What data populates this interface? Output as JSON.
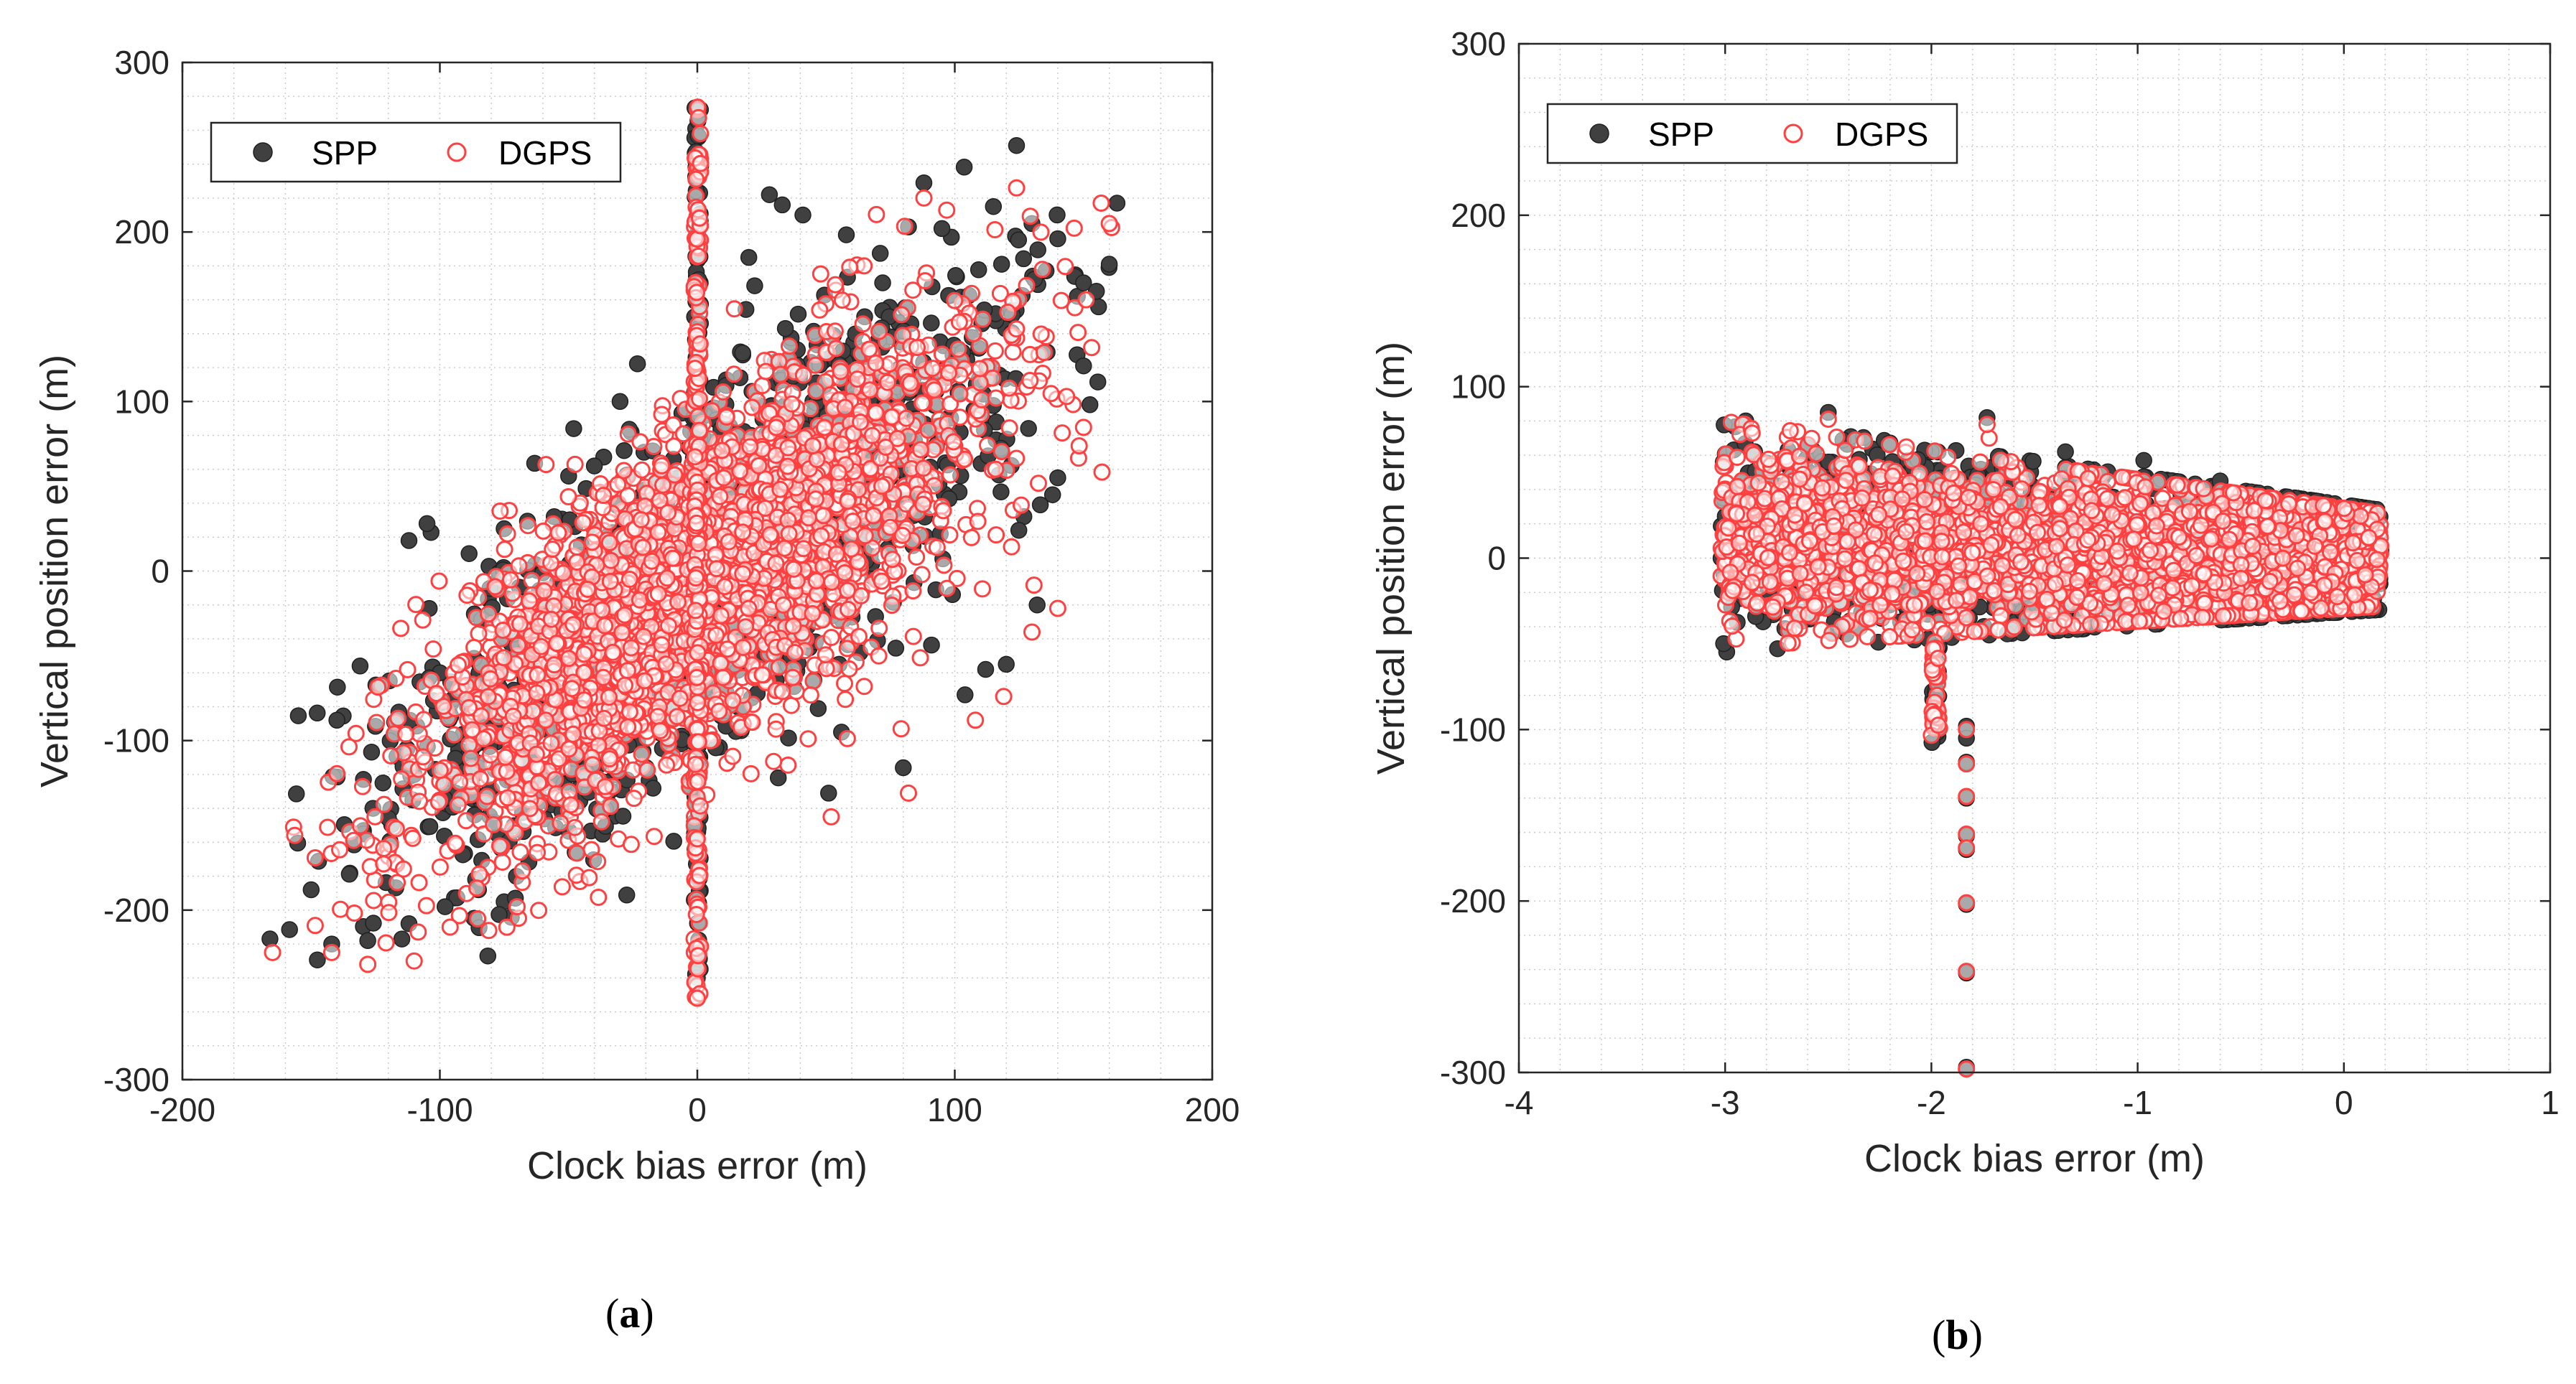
{
  "chart_data": [
    {
      "type": "scatter",
      "panel_label": "a",
      "xlabel": "Clock bias error (m)",
      "ylabel": "Vertical position error (m)",
      "xlim": [
        -200,
        200
      ],
      "ylim": [
        -300,
        300
      ],
      "xticks": [
        -200,
        -100,
        0,
        100,
        200
      ],
      "yticks": [
        -300,
        -200,
        -100,
        0,
        100,
        200,
        300
      ],
      "grid": "dotted minor",
      "legend_position": "top-left",
      "series": [
        {
          "name": "SPP",
          "color": "#404040",
          "marker": "filled-circle",
          "distribution": {
            "model": "correlated",
            "seed": 11,
            "n": 1700,
            "x_mean": 0,
            "x_sd": 58,
            "slope": 1.05,
            "intercept": -5,
            "resid_sd": 48,
            "x_min": -168,
            "x_max": 165
          },
          "spike": {
            "x": 0,
            "y_min": -240,
            "y_max": 287,
            "n": 130
          },
          "extra_points": [
            [
              -166,
              -217
            ],
            [
              -150,
              -188
            ],
            [
              -142,
              -220
            ],
            [
              -128,
              -218
            ],
            [
              -112,
              -208
            ],
            [
              -98,
              -198
            ],
            [
              -85,
              -188
            ],
            [
              -126,
              -140
            ],
            [
              -110,
              -120
            ],
            [
              -140,
              -88
            ],
            [
              -131,
              -56
            ],
            [
              -105,
              28
            ],
            [
              -112,
              18
            ],
            [
              -60,
              -35
            ],
            [
              -50,
              56
            ],
            [
              -48,
              84
            ],
            [
              -30,
              100
            ],
            [
              -40,
              62
            ],
            [
              20,
              185
            ],
            [
              28,
              222
            ],
            [
              33,
              216
            ],
            [
              41,
              210
            ],
            [
              51,
              -131
            ],
            [
              56,
              -95
            ],
            [
              80,
              -116
            ],
            [
              65,
              150
            ],
            [
              72,
              170
            ],
            [
              82,
              203
            ],
            [
              88,
              229
            ],
            [
              95,
              202
            ],
            [
              115,
              215
            ],
            [
              124,
              251
            ],
            [
              130,
              205
            ],
            [
              140,
              196
            ],
            [
              150,
              170
            ],
            [
              155,
              165
            ],
            [
              160,
              181
            ],
            [
              163,
              217
            ],
            [
              150,
              121
            ],
            [
              140,
              55
            ],
            [
              138,
              45
            ],
            [
              132,
              -20
            ],
            [
              120,
              -55
            ],
            [
              112,
              -58
            ],
            [
              104,
              -73
            ],
            [
              0,
              -240
            ]
          ]
        },
        {
          "name": "DGPS",
          "color": "#ff4040",
          "marker": "open-circle",
          "distribution": {
            "model": "correlated",
            "seed": 23,
            "n": 2900,
            "x_mean": 0,
            "x_sd": 55,
            "slope": 1.0,
            "intercept": -10,
            "resid_sd": 46,
            "x_min": -166,
            "x_max": 163
          },
          "spike": {
            "x": 0,
            "y_min": -252,
            "y_max": 278,
            "n": 190
          },
          "extra_points": [
            [
              -165,
              -225
            ],
            [
              -142,
              -225
            ],
            [
              -128,
              -232
            ],
            [
              -110,
              -230
            ],
            [
              -96,
              -210
            ],
            [
              -81,
              -212
            ],
            [
              -70,
              -198
            ],
            [
              52,
              -145
            ],
            [
              82,
              -131
            ],
            [
              108,
              -88
            ],
            [
              119,
              -74
            ],
            [
              130,
              -36
            ],
            [
              140,
              -22
            ],
            [
              124,
              226
            ],
            [
              88,
              220
            ],
            [
              160,
              205
            ],
            [
              151,
              160
            ],
            [
              0,
              -252
            ]
          ]
        }
      ]
    },
    {
      "type": "scatter",
      "panel_label": "b",
      "xlabel": "Clock bias error (m)",
      "ylabel": "Vertical position error (m)",
      "xlim": [
        -4,
        1
      ],
      "ylim": [
        -300,
        300
      ],
      "xticks": [
        -4,
        -3,
        -2,
        -1,
        0,
        1
      ],
      "yticks": [
        -300,
        -200,
        -100,
        0,
        100,
        200,
        300
      ],
      "grid": "dotted minor",
      "legend_position": "top-left",
      "series": [
        {
          "name": "SPP",
          "color": "#404040",
          "marker": "filled-circle",
          "distribution": {
            "model": "band",
            "seed": 31,
            "n": 1500,
            "x_min": -3.02,
            "x_max": 0.18,
            "top_left": 82,
            "top_right": 28,
            "bottom_left": -55,
            "bottom_right": -30,
            "y_mean_left": 15,
            "y_mean_right": 0,
            "y_sd": 26
          },
          "spike": {
            "x": -1.98,
            "y_min": -108,
            "y_max": -50,
            "n": 30
          },
          "extra_points": [
            [
              -1.83,
              -119
            ],
            [
              -1.83,
              -140
            ],
            [
              -1.83,
              -162
            ],
            [
              -1.83,
              -170
            ],
            [
              -1.83,
              -202
            ],
            [
              -1.83,
              -242
            ],
            [
              -1.83,
              -297
            ],
            [
              -1.83,
              -98
            ],
            [
              -1.83,
              -105
            ],
            [
              -2.5,
              85
            ],
            [
              -2.9,
              80
            ],
            [
              -1.73,
              82
            ],
            [
              -1.35,
              62
            ],
            [
              -0.97,
              57
            ],
            [
              -0.6,
              45
            ],
            [
              -0.03,
              27
            ],
            [
              0.14,
              14
            ]
          ]
        },
        {
          "name": "DGPS",
          "color": "#ff4040",
          "marker": "open-circle",
          "distribution": {
            "model": "band",
            "seed": 47,
            "n": 2600,
            "x_min": -3.02,
            "x_max": 0.18,
            "top_left": 80,
            "top_right": 26,
            "bottom_left": -52,
            "bottom_right": -28,
            "y_mean_left": 12,
            "y_mean_right": -2,
            "y_sd": 25
          },
          "spike": {
            "x": -1.98,
            "y_min": -105,
            "y_max": -48,
            "n": 40
          },
          "extra_points": [
            [
              -1.83,
              -120
            ],
            [
              -1.83,
              -139
            ],
            [
              -1.83,
              -161
            ],
            [
              -1.83,
              -169
            ],
            [
              -1.83,
              -201
            ],
            [
              -1.83,
              -241
            ],
            [
              -1.83,
              -298
            ],
            [
              -1.83,
              -100
            ],
            [
              -1.7,
              40
            ],
            [
              -1.72,
              70
            ],
            [
              -2.5,
              81
            ],
            [
              -1.73,
              78
            ],
            [
              0.12,
              12
            ]
          ]
        }
      ]
    }
  ]
}
